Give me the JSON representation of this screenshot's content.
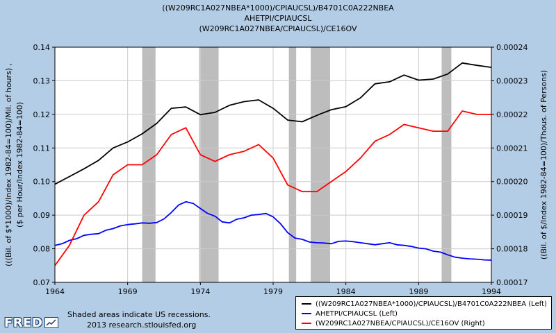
{
  "title_lines": [
    "((W209RC1A027NBEA*1000)/CPIAUCSL)/B4701C0A222NBEA",
    "AHETPI/CPIAUCSL",
    "(W209RC1A027NBEA/CPIAUCSL)/CE16OV"
  ],
  "footnote": {
    "line1": "Shaded areas indicate US recessions.",
    "line2": "2013 research.stlouisfed.org"
  },
  "logo": {
    "text": "FRED",
    "icon": "chart-line-icon"
  },
  "colors": {
    "background": "#b4cde6",
    "plot_bg": "#ffffff",
    "grid": "#cccccc",
    "recession": "#bdbdbd",
    "black_series": "#000000",
    "blue_series": "#0000ff",
    "red_series": "#ff0000"
  },
  "chart_data": {
    "type": "line",
    "xlim": [
      1964,
      1994
    ],
    "x_ticks": [
      "1964",
      "1969",
      "1974",
      "1979",
      "1984",
      "1989",
      "1994"
    ],
    "ylabel_left": "(((Bil. of $*1000)/Index 1982-84=100)/Mil. of hours) ,\n($ per Hour/Index 1982-84=100)",
    "ylim_left": [
      0.07,
      0.14
    ],
    "y_ticks_left": [
      "0.07",
      "0.08",
      "0.09",
      "0.10",
      "0.11",
      "0.12",
      "0.13",
      "0.14"
    ],
    "ylabel_right": "((Bil. of $/Index 1982-84=100)/Thous. of Persons)",
    "ylim_right": [
      0.00017,
      0.00024
    ],
    "y_ticks_right": [
      "0.00017",
      "0.00018",
      "0.00019",
      "0.00020",
      "0.00021",
      "0.00022",
      "0.00023",
      "0.00024"
    ],
    "grid": true,
    "legend_placement": "bottom-right",
    "recessions": [
      [
        1970.0,
        1970.917
      ],
      [
        1973.917,
        1975.25
      ],
      [
        1980.083,
        1980.583
      ],
      [
        1981.583,
        1982.917
      ],
      [
        1990.583,
        1991.25
      ]
    ],
    "series": [
      {
        "name": "((W209RC1A027NBEA*1000)/CPIAUCSL)/B4701C0A222NBEA (Left)",
        "axis": "left",
        "color": "#000000",
        "x": [
          1964,
          1965,
          1966,
          1967,
          1968,
          1969,
          1970,
          1971,
          1972,
          1973,
          1974,
          1975,
          1976,
          1977,
          1978,
          1979,
          1980,
          1981,
          1982,
          1983,
          1984,
          1985,
          1986,
          1987,
          1988,
          1989,
          1990,
          1991,
          1992,
          1993,
          1994
        ],
        "y": [
          0.0992,
          0.1015,
          0.1038,
          0.1063,
          0.11,
          0.1118,
          0.1142,
          0.1173,
          0.1218,
          0.1222,
          0.1199,
          0.1206,
          0.1227,
          0.1238,
          0.1243,
          0.1218,
          0.1183,
          0.1178,
          0.1197,
          0.1214,
          0.1223,
          0.1249,
          0.1291,
          0.1297,
          0.1317,
          0.1302,
          0.1305,
          0.132,
          0.1353,
          0.1346,
          0.134
        ]
      },
      {
        "name": "AHETPI/CPIAUCSL (Left)",
        "axis": "left",
        "color": "#0000ff",
        "x": [
          1964,
          1964.5,
          1965,
          1965.5,
          1966,
          1966.5,
          1967,
          1967.5,
          1968,
          1968.5,
          1969,
          1969.5,
          1970,
          1970.5,
          1971,
          1971.5,
          1972,
          1972.5,
          1973,
          1973.5,
          1974,
          1974.5,
          1975,
          1975.5,
          1976,
          1976.5,
          1977,
          1977.5,
          1978,
          1978.5,
          1979,
          1979.5,
          1980,
          1980.5,
          1981,
          1981.5,
          1982,
          1982.5,
          1983,
          1983.5,
          1984,
          1984.5,
          1985,
          1985.5,
          1986,
          1986.5,
          1987,
          1987.5,
          1988,
          1988.5,
          1989,
          1989.5,
          1990,
          1990.5,
          1991,
          1991.5,
          1992,
          1992.5,
          1993,
          1993.5,
          1994
        ],
        "y": [
          0.081,
          0.0815,
          0.0825,
          0.083,
          0.084,
          0.0843,
          0.0845,
          0.0855,
          0.086,
          0.0868,
          0.0872,
          0.0874,
          0.0877,
          0.0876,
          0.0878,
          0.0889,
          0.0908,
          0.093,
          0.094,
          0.0935,
          0.092,
          0.0905,
          0.0897,
          0.088,
          0.0877,
          0.0888,
          0.0892,
          0.09,
          0.0902,
          0.0905,
          0.0895,
          0.0875,
          0.0848,
          0.0832,
          0.0828,
          0.082,
          0.0818,
          0.0817,
          0.0815,
          0.0822,
          0.0823,
          0.0821,
          0.0818,
          0.0815,
          0.0812,
          0.0815,
          0.0818,
          0.0812,
          0.081,
          0.0807,
          0.0802,
          0.08,
          0.0793,
          0.079,
          0.0782,
          0.0775,
          0.0772,
          0.077,
          0.0769,
          0.0767,
          0.0766
        ]
      },
      {
        "name": "(W209RC1A027NBEA/CPIAUCSL)/CE16OV (Right)",
        "axis": "right",
        "color": "#ff0000",
        "x": [
          1964,
          1965,
          1966,
          1967,
          1968,
          1969,
          1970,
          1971,
          1972,
          1973,
          1974,
          1975,
          1976,
          1977,
          1978,
          1979,
          1980,
          1981,
          1982,
          1983,
          1984,
          1985,
          1986,
          1987,
          1988,
          1989,
          1990,
          1991,
          1992,
          1993,
          1994
        ],
        "y": [
          0.000175,
          0.000181,
          0.00019,
          0.000194,
          0.000202,
          0.000205,
          0.000205,
          0.000208,
          0.000214,
          0.000216,
          0.000208,
          0.000206,
          0.000208,
          0.000209,
          0.000211,
          0.000207,
          0.000199,
          0.000197,
          0.000197,
          0.0002,
          0.000203,
          0.000207,
          0.000212,
          0.000214,
          0.000217,
          0.000216,
          0.000215,
          0.000215,
          0.000221,
          0.00022,
          0.00022
        ]
      }
    ]
  },
  "legend_labels": [
    "((W209RC1A027NBEA*1000)/CPIAUCSL)/B4701C0A222NBEA (Left)",
    "AHETPI/CPIAUCSL (Left)",
    "(W209RC1A027NBEA/CPIAUCSL)/CE16OV (Right)"
  ]
}
